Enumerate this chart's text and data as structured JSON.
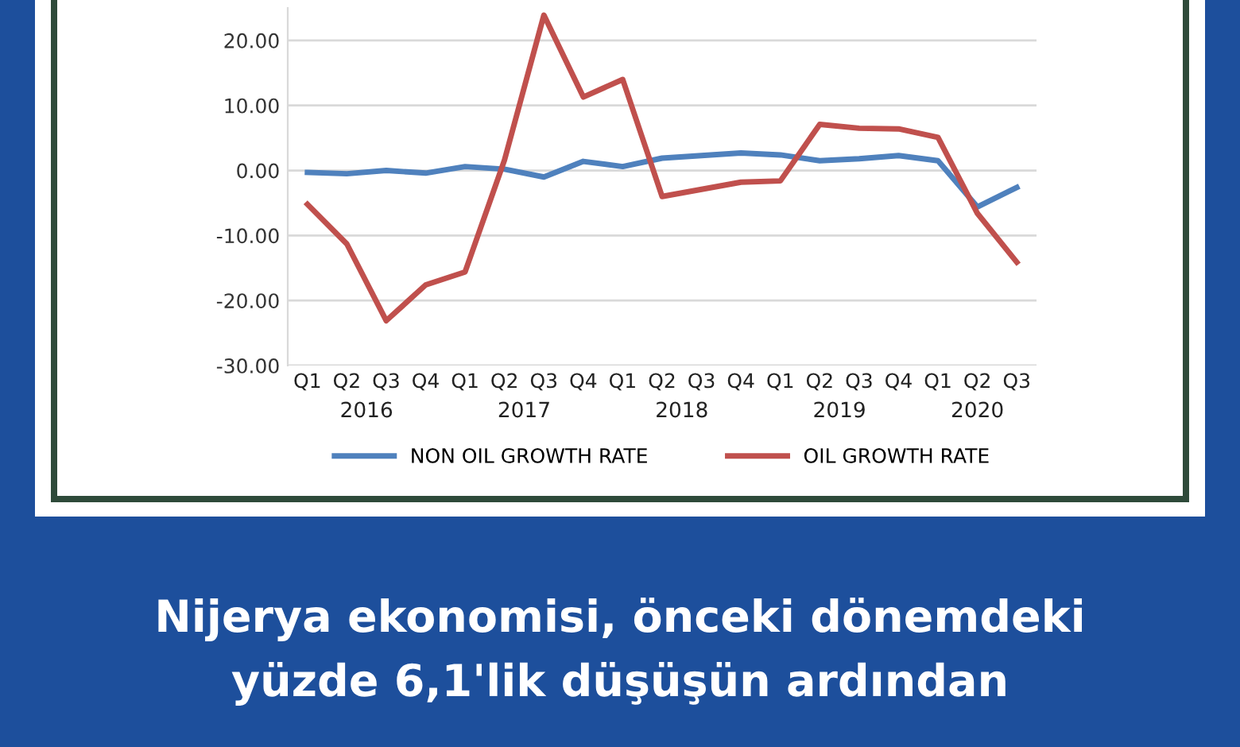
{
  "chart_data": {
    "type": "line",
    "title": "Nijerya ekonomisi, önceki dönemdeki\nyüzde 6,1'lik düşüşün ardından",
    "categories": [
      "Q1",
      "Q2",
      "Q3",
      "Q4",
      "Q1",
      "Q2",
      "Q3",
      "Q4",
      "Q1",
      "Q2",
      "Q3",
      "Q4",
      "Q1",
      "Q2",
      "Q3",
      "Q4",
      "Q1",
      "Q2",
      "Q3"
    ],
    "annotations": [
      "2016",
      "2017",
      "2018",
      "2019",
      "2020"
    ],
    "series": [
      {
        "name": "NON OIL GROWTH RATE",
        "color": "#4f81bd",
        "values": [
          -0.3,
          -0.5,
          0.0,
          -0.4,
          0.6,
          0.2,
          -1.0,
          1.4,
          0.6,
          1.9,
          2.3,
          2.7,
          2.4,
          1.5,
          1.8,
          2.3,
          1.5,
          -5.6,
          -2.6
        ]
      },
      {
        "name": "OIL GROWTH RATE",
        "color": "#c0504d",
        "values": [
          -5.2,
          -11.3,
          -23.1,
          -17.6,
          -15.6,
          1.6,
          23.9,
          11.3,
          14.0,
          -4.0,
          -2.9,
          -1.8,
          -1.6,
          7.1,
          6.5,
          6.4,
          5.1,
          -6.6,
          -14.1
        ]
      }
    ],
    "ylim": [
      -30,
      25
    ],
    "yticks": [
      {
        "value": -30,
        "label": "-30.00"
      },
      {
        "value": -20,
        "label": "-20.00"
      },
      {
        "value": -10,
        "label": "-10.00"
      },
      {
        "value": 0,
        "label": "0.00"
      },
      {
        "value": 10,
        "label": "10.00"
      },
      {
        "value": 20,
        "label": "20.00"
      }
    ],
    "grid": "y",
    "legend": "bottom",
    "marker": "none",
    "line_style": "solid"
  }
}
